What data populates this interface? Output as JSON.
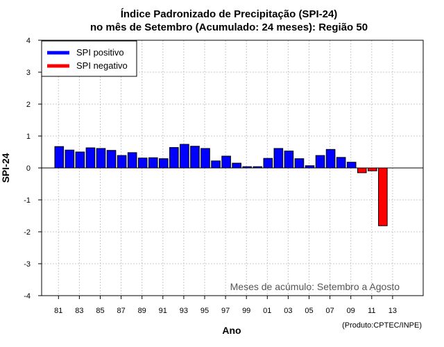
{
  "chart_data": {
    "type": "bar",
    "title_line1": "Índice Padronizado de Precipitação (SPI-24)",
    "title_line2": "no mês de Setembro (Acumulado: 24 meses): Região 50",
    "xlabel": "Ano",
    "ylabel": "SPI-24",
    "ylim": [
      -4,
      4
    ],
    "yticks": [
      -4,
      -3,
      -2,
      -1,
      0,
      1,
      2,
      3,
      4
    ],
    "xtick_labels": [
      "81",
      "83",
      "85",
      "87",
      "89",
      "91",
      "93",
      "95",
      "97",
      "99",
      "01",
      "03",
      "05",
      "07",
      "09",
      "11",
      "13"
    ],
    "xtick_years": [
      1981,
      1983,
      1985,
      1987,
      1989,
      1991,
      1993,
      1995,
      1997,
      1999,
      2001,
      2003,
      2005,
      2007,
      2009,
      2011,
      2013
    ],
    "grid": true,
    "legend_position": "top-left",
    "legend": [
      {
        "label": "SPI positivo",
        "color": "#0000ff"
      },
      {
        "label": "SPI negativo",
        "color": "#ff0000"
      }
    ],
    "annotation": "Meses de acúmulo: Setembro a Agosto",
    "credit": "(Produto:CPTEC/INPE)",
    "positive_color": "#0000ff",
    "negative_color": "#ff0000",
    "years": [
      1981,
      1982,
      1983,
      1984,
      1985,
      1986,
      1987,
      1988,
      1989,
      1990,
      1991,
      1992,
      1993,
      1994,
      1995,
      1996,
      1997,
      1998,
      1999,
      2000,
      2001,
      2002,
      2003,
      2004,
      2005,
      2006,
      2007,
      2008,
      2009,
      2010,
      2011,
      2012
    ],
    "values": [
      0.67,
      0.56,
      0.5,
      0.63,
      0.61,
      0.55,
      0.39,
      0.48,
      0.31,
      0.32,
      0.29,
      0.64,
      0.74,
      0.68,
      0.61,
      0.22,
      0.37,
      0.15,
      0.04,
      0.04,
      0.3,
      0.61,
      0.53,
      0.29,
      0.07,
      0.39,
      0.58,
      0.33,
      0.18,
      -0.15,
      -0.09,
      -1.81
    ]
  }
}
